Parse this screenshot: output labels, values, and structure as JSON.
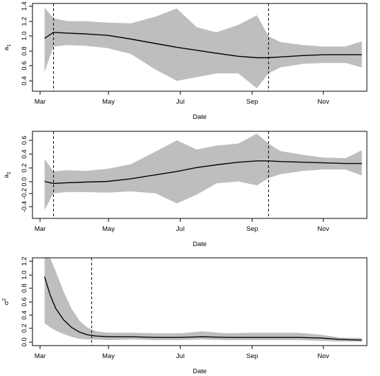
{
  "chart_data": [
    {
      "type": "line",
      "ylabel": "a",
      "ylabel_sub": "1",
      "xlabel": "Date",
      "x_ticks": [
        "Mar",
        "May",
        "Jul",
        "Sep",
        "Nov"
      ],
      "y_ticks": [
        "0.4",
        "0.6",
        "0.8",
        "1.0",
        "1.2",
        "1.4"
      ],
      "ylim": [
        0.3,
        1.43
      ],
      "vlines": [
        "2012-03-13",
        "2012-09-15"
      ],
      "series": [
        {
          "x": [
            "2012-03-05",
            "2012-03-13",
            "2012-03-25",
            "2012-04-10",
            "2012-04-30",
            "2012-05-20",
            "2012-06-10",
            "2012-06-28",
            "2012-07-15",
            "2012-08-01",
            "2012-08-20",
            "2012-09-05",
            "2012-09-15",
            "2012-09-25",
            "2012-10-15",
            "2012-11-01",
            "2012-11-20",
            "2012-12-04"
          ],
          "y": [
            0.97,
            1.05,
            1.04,
            1.03,
            1.01,
            0.96,
            0.9,
            0.85,
            0.81,
            0.77,
            0.73,
            0.71,
            0.71,
            0.72,
            0.74,
            0.75,
            0.75,
            0.75
          ],
          "lower": [
            0.52,
            0.86,
            0.88,
            0.87,
            0.84,
            0.76,
            0.55,
            0.4,
            0.45,
            0.5,
            0.5,
            0.3,
            0.5,
            0.58,
            0.63,
            0.64,
            0.64,
            0.58
          ],
          "upper": [
            1.38,
            1.24,
            1.2,
            1.2,
            1.18,
            1.17,
            1.26,
            1.37,
            1.12,
            1.05,
            1.15,
            1.28,
            1.0,
            0.92,
            0.88,
            0.86,
            0.86,
            0.93
          ]
        }
      ]
    },
    {
      "type": "line",
      "ylabel": "a",
      "ylabel_sub": "2",
      "xlabel": "Date",
      "x_ticks": [
        "Mar",
        "May",
        "Jul",
        "Sep",
        "Nov"
      ],
      "y_ticks": [
        "-0.4",
        "-0.2",
        "0.0",
        "0.2",
        "0.4",
        "0.6"
      ],
      "ylim": [
        -0.52,
        0.72
      ],
      "vlines": [
        "2012-03-13",
        "2012-09-15"
      ],
      "series": [
        {
          "x": [
            "2012-03-05",
            "2012-03-13",
            "2012-03-25",
            "2012-04-10",
            "2012-04-30",
            "2012-05-20",
            "2012-06-10",
            "2012-06-28",
            "2012-07-15",
            "2012-08-01",
            "2012-08-20",
            "2012-09-05",
            "2012-09-15",
            "2012-09-25",
            "2012-10-15",
            "2012-11-01",
            "2012-11-20",
            "2012-12-04"
          ],
          "y": [
            -0.02,
            -0.05,
            -0.04,
            -0.03,
            -0.02,
            0.02,
            0.08,
            0.13,
            0.19,
            0.23,
            0.27,
            0.29,
            0.29,
            0.28,
            0.27,
            0.26,
            0.25,
            0.25
          ],
          "lower": [
            -0.45,
            -0.2,
            -0.18,
            -0.18,
            -0.19,
            -0.17,
            -0.2,
            -0.35,
            -0.22,
            -0.05,
            -0.02,
            -0.08,
            0.03,
            0.09,
            0.14,
            0.16,
            0.16,
            0.07
          ],
          "upper": [
            0.32,
            0.13,
            0.15,
            0.14,
            0.17,
            0.24,
            0.43,
            0.6,
            0.46,
            0.52,
            0.55,
            0.7,
            0.55,
            0.44,
            0.38,
            0.34,
            0.33,
            0.45
          ]
        }
      ]
    },
    {
      "type": "line",
      "ylabel": "σ",
      "ylabel_sup": "2",
      "xlabel": "Date",
      "x_ticks": [
        "Mar",
        "May",
        "Jul",
        "Sep",
        "Nov"
      ],
      "y_ticks": [
        "0.0",
        "0.2",
        "0.4",
        "0.6",
        "0.8",
        "1.0",
        "1.2"
      ],
      "ylim": [
        -0.05,
        1.25
      ],
      "vlines": [
        "2012-04-16"
      ],
      "series": [
        {
          "x": [
            "2012-03-05",
            "2012-03-10",
            "2012-03-15",
            "2012-03-22",
            "2012-03-29",
            "2012-04-05",
            "2012-04-12",
            "2012-04-20",
            "2012-05-01",
            "2012-05-20",
            "2012-06-10",
            "2012-07-01",
            "2012-07-20",
            "2012-08-10",
            "2012-09-01",
            "2012-09-20",
            "2012-10-10",
            "2012-10-30",
            "2012-11-15",
            "2012-12-04"
          ],
          "y": [
            0.97,
            0.7,
            0.5,
            0.33,
            0.22,
            0.15,
            0.11,
            0.09,
            0.08,
            0.08,
            0.07,
            0.07,
            0.08,
            0.07,
            0.07,
            0.07,
            0.07,
            0.06,
            0.04,
            0.03
          ],
          "lower": [
            0.28,
            0.22,
            0.17,
            0.12,
            0.08,
            0.05,
            0.04,
            0.04,
            0.03,
            0.04,
            0.03,
            0.03,
            0.04,
            0.03,
            0.03,
            0.03,
            0.03,
            0.02,
            0.01,
            0.01
          ],
          "upper": [
            1.25,
            1.25,
            1.05,
            0.75,
            0.5,
            0.32,
            0.22,
            0.16,
            0.14,
            0.14,
            0.13,
            0.13,
            0.16,
            0.13,
            0.14,
            0.14,
            0.14,
            0.11,
            0.07,
            0.06
          ]
        }
      ]
    }
  ]
}
